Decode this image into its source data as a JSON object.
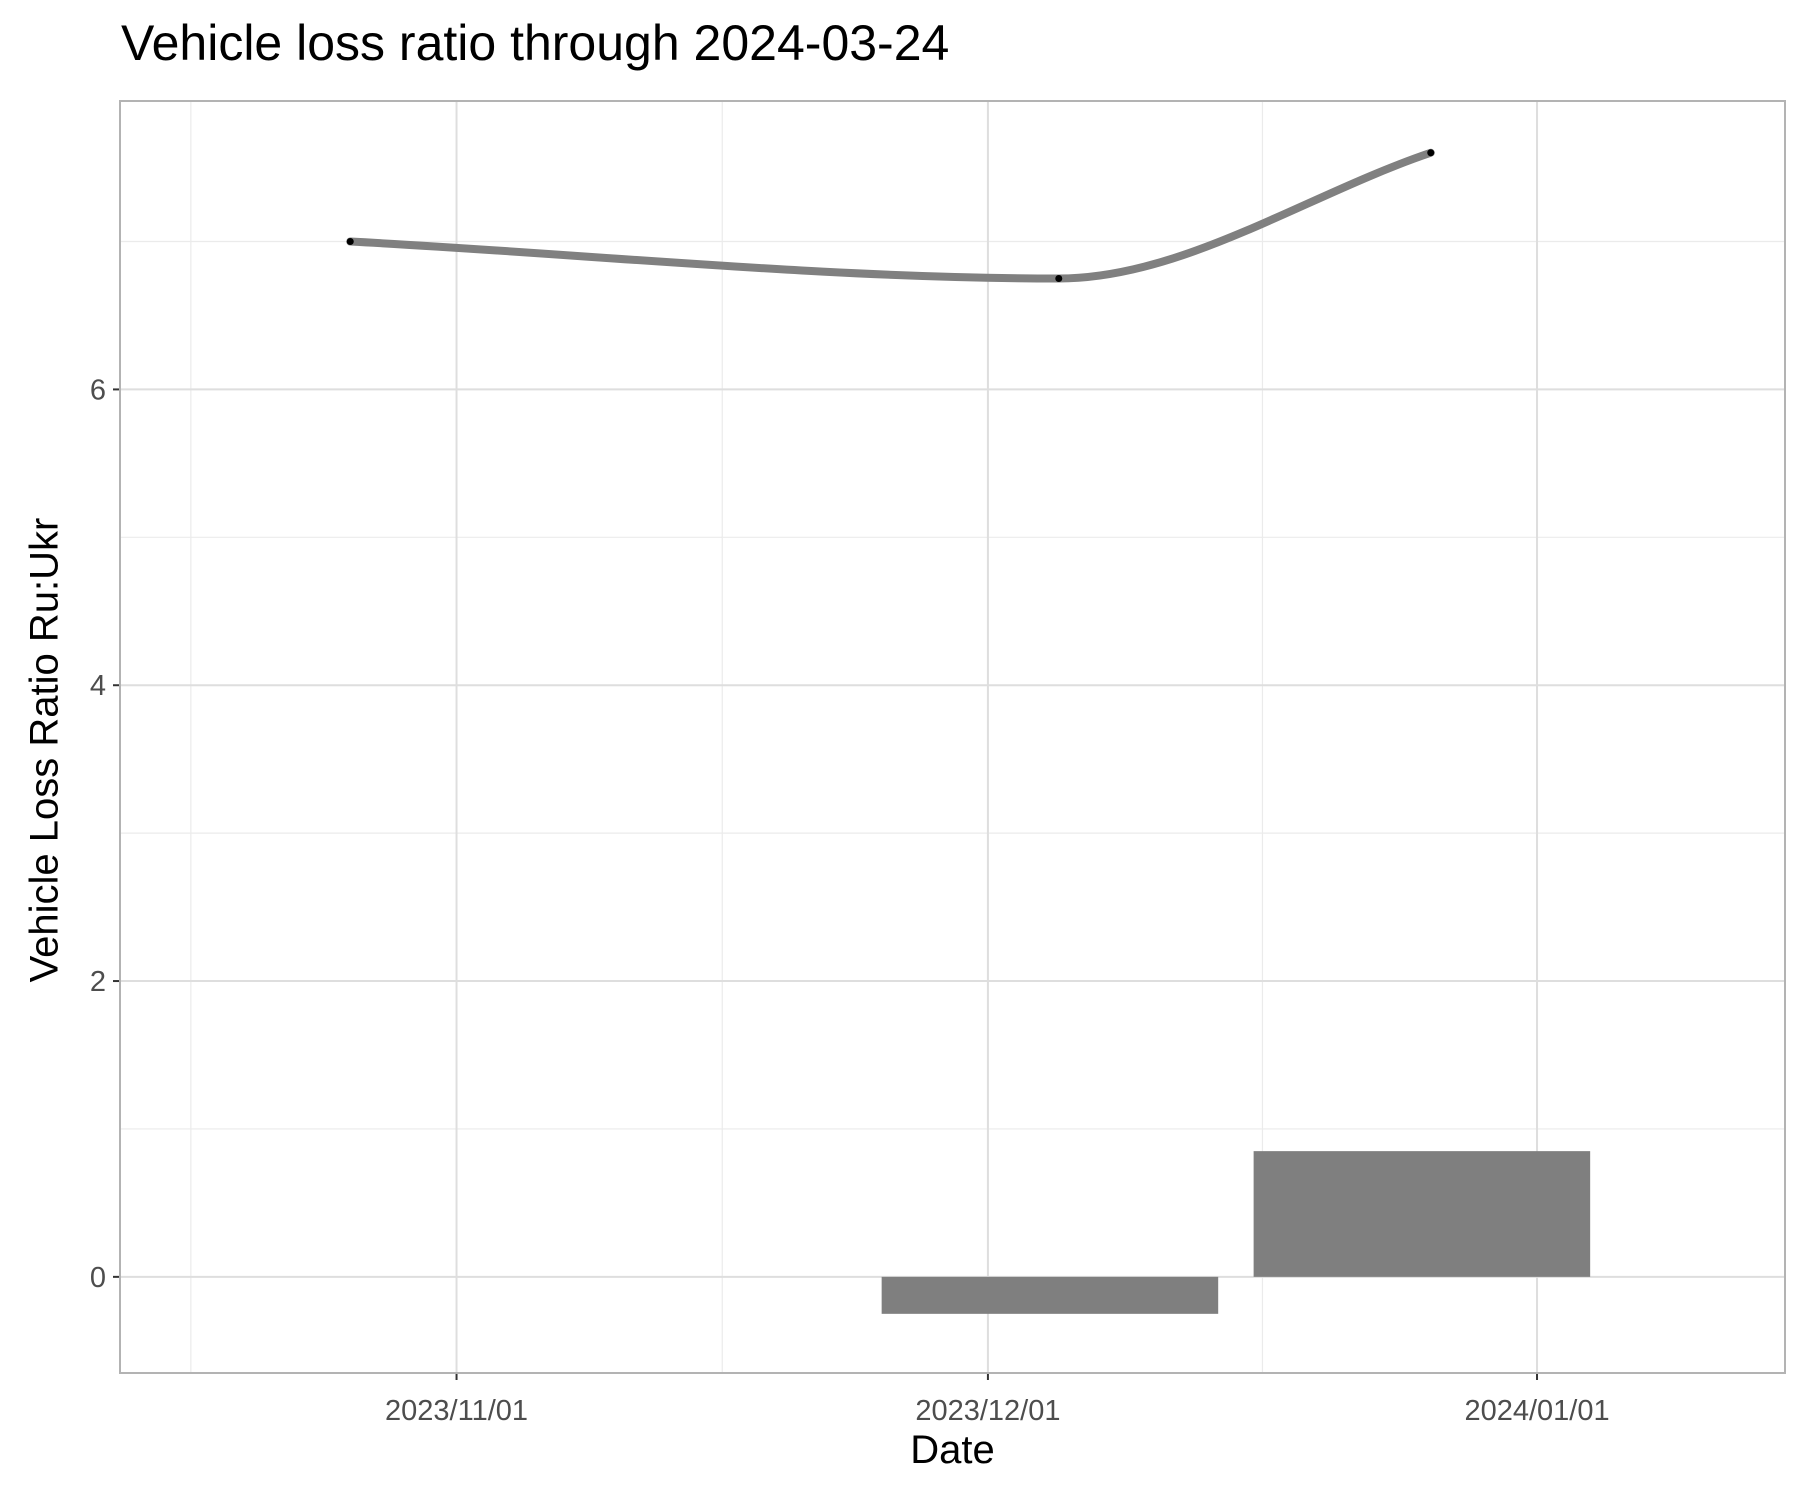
{
  "chart_data": {
    "type": "line",
    "title": "Vehicle loss ratio through 2024-03-24",
    "xlabel": "Date",
    "ylabel": "Vehicle Loss Ratio Ru:Ukr",
    "x_type": "date",
    "xlim": [
      "2023-10-13",
      "2024-01-15"
    ],
    "ylim": [
      -0.65,
      7.95
    ],
    "x_ticks": [
      {
        "value": "2023-11-01",
        "label": "2023/11/01"
      },
      {
        "value": "2023-12-01",
        "label": "2023/12/01"
      },
      {
        "value": "2024-01-01",
        "label": "2024/01/01"
      }
    ],
    "y_ticks": [
      {
        "value": 0,
        "label": "0"
      },
      {
        "value": 2,
        "label": "2"
      },
      {
        "value": 4,
        "label": "4"
      },
      {
        "value": 6,
        "label": "6"
      }
    ],
    "grid": true,
    "series": [
      {
        "type": "line",
        "color": "#808080",
        "points": [
          {
            "x": "2023-10-26",
            "y": 7.0
          },
          {
            "x": "2023-12-05",
            "y": 6.75
          },
          {
            "x": "2023-12-26",
            "y": 7.6
          }
        ]
      },
      {
        "type": "bar",
        "color": "#7f7f7f",
        "bars": [
          {
            "x_start": "2023-11-25",
            "x_end": "2023-12-14",
            "value": -0.25
          },
          {
            "x_start": "2023-12-16",
            "x_end": "2024-01-04",
            "value": 0.85
          }
        ]
      }
    ]
  }
}
